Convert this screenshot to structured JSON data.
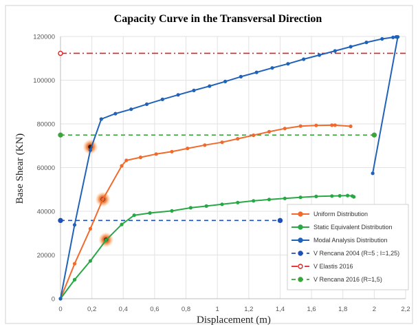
{
  "chart_data": {
    "type": "line",
    "title": "Capacity Curve in the Transversal Direction",
    "xlabel": "Displacement  (m)",
    "ylabel": "Base Shear  (KN)",
    "xlim": [
      0,
      2.2
    ],
    "ylim": [
      0,
      120000
    ],
    "xticks": [
      0,
      0.2,
      0.4,
      0.6,
      0.8,
      1,
      1.2,
      1.4,
      1.6,
      1.8,
      2,
      2.2
    ],
    "xtick_labels": [
      "0",
      "0,2",
      "0,4",
      "0,6",
      "0,8",
      "1",
      "1,2",
      "1,4",
      "1,6",
      "1,8",
      "2",
      "2,2"
    ],
    "yticks": [
      0,
      20000,
      40000,
      60000,
      80000,
      100000,
      120000
    ],
    "ytick_labels": [
      "0",
      "20000",
      "40000",
      "60000",
      "80000",
      "100000",
      "120000"
    ],
    "grid": true,
    "legend_position": "bottom-right",
    "series": [
      {
        "name": "Uniform Distribution",
        "color": "#f26a2b",
        "x": [
          0,
          0.09,
          0.19,
          0.27,
          0.39,
          0.42,
          0.51,
          0.61,
          0.71,
          0.81,
          0.92,
          1.03,
          1.13,
          1.23,
          1.33,
          1.43,
          1.53,
          1.63,
          1.73,
          1.75,
          1.85
        ],
        "y": [
          0,
          16000,
          32000,
          45500,
          60800,
          63300,
          64700,
          66200,
          67300,
          68800,
          70300,
          71600,
          73200,
          74800,
          76400,
          77900,
          79000,
          79300,
          79400,
          79400,
          78900
        ]
      },
      {
        "name": "Static Equivalent Distribution",
        "color": "#27a844",
        "x": [
          0,
          0.09,
          0.19,
          0.29,
          0.39,
          0.47,
          0.57,
          0.71,
          0.83,
          0.93,
          1.03,
          1.13,
          1.23,
          1.33,
          1.43,
          1.53,
          1.63,
          1.73,
          1.78,
          1.83,
          1.86,
          1.87
        ],
        "y": [
          0,
          8700,
          17300,
          26800,
          34000,
          38200,
          39200,
          40200,
          41600,
          42400,
          43200,
          44000,
          44800,
          45400,
          45900,
          46400,
          46800,
          47000,
          47100,
          47200,
          47000,
          46600
        ]
      },
      {
        "name": "Modal Analysis Distribution",
        "color": "#1f62b8",
        "x": [
          0,
          0.09,
          0.19,
          0.26,
          0.35,
          0.45,
          0.55,
          0.65,
          0.75,
          0.85,
          0.95,
          1.05,
          1.15,
          1.25,
          1.35,
          1.45,
          1.55,
          1.65,
          1.75,
          1.85,
          1.95,
          2.05,
          2.12,
          2.14,
          2.15,
          1.99
        ],
        "y": [
          0,
          33800,
          68000,
          82200,
          84700,
          86700,
          89000,
          91200,
          93300,
          95300,
          97300,
          99400,
          101600,
          103600,
          105600,
          107500,
          109600,
          111500,
          113400,
          115300,
          117300,
          118900,
          119600,
          119800,
          119800,
          57400
        ]
      }
    ],
    "reference_lines": [
      {
        "name": "V Rencana 2004 (R=5 ; I=1,25)",
        "color": "#1f4fb8",
        "style": "dashed",
        "marker": "filled-circle",
        "y": 35800,
        "x_range": [
          0,
          1.4
        ]
      },
      {
        "name": "V Elastis 2016",
        "color": "#e02020",
        "style": "dash-dot",
        "marker": "open-circle",
        "y": 112300,
        "x_range": [
          0,
          2.2
        ]
      },
      {
        "name": "V Rencana 2016 (R=1,5)",
        "color": "#3aa53a",
        "style": "dashed",
        "marker": "filled-circle",
        "y": 74900,
        "x_range": [
          0,
          2
        ]
      }
    ],
    "highlights": [
      {
        "x": 0.19,
        "y": 69500
      },
      {
        "x": 0.27,
        "y": 45500
      },
      {
        "x": 0.29,
        "y": 27000
      }
    ]
  }
}
